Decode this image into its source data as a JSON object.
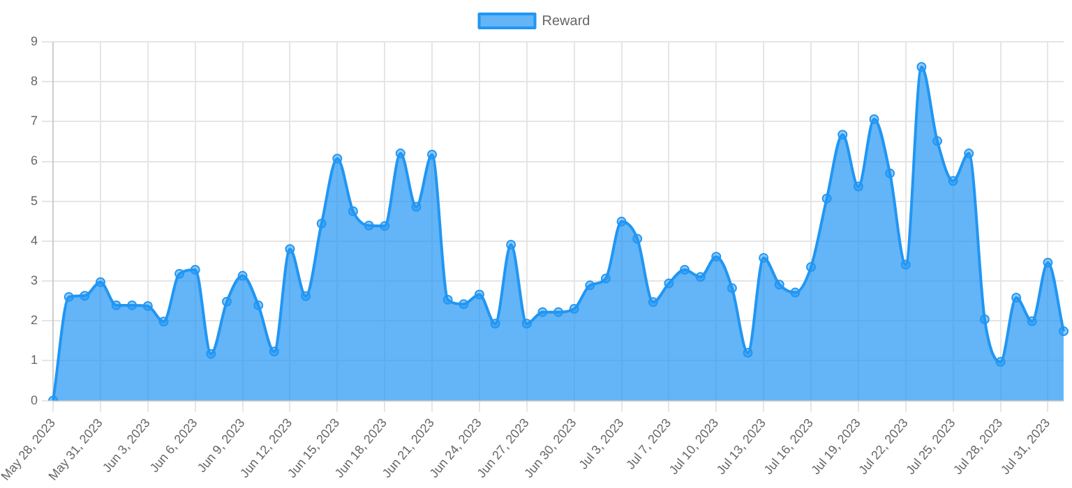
{
  "chart_data": {
    "type": "area",
    "categories": [
      "May 28, 2023",
      null,
      null,
      "May 31, 2023",
      null,
      null,
      "Jun 3, 2023",
      null,
      null,
      "Jun 6, 2023",
      null,
      null,
      "Jun 9, 2023",
      null,
      null,
      "Jun 12, 2023",
      null,
      null,
      "Jun 15, 2023",
      null,
      null,
      "Jun 18, 2023",
      null,
      null,
      "Jun 21, 2023",
      null,
      null,
      "Jun 24, 2023",
      null,
      null,
      "Jun 27, 2023",
      null,
      null,
      "Jun 30, 2023",
      null,
      null,
      "Jul 3, 2023",
      null,
      null,
      "Jul 7, 2023",
      null,
      null,
      "Jul 10, 2023",
      null,
      null,
      "Jul 13, 2023",
      null,
      null,
      "Jul 16, 2023",
      null,
      null,
      "Jul 19, 2023",
      null,
      null,
      "Jul 22, 2023",
      null,
      null,
      "Jul 25, 2023",
      null,
      null,
      "Jul 28, 2023",
      null,
      null,
      "Jul 31, 2023",
      null
    ],
    "series": [
      {
        "name": "Reward",
        "color": "#2196f3",
        "values": [
          0,
          2.6,
          2.63,
          2.97,
          2.39,
          2.39,
          2.37,
          1.98,
          3.18,
          3.28,
          1.17,
          2.48,
          3.13,
          2.39,
          1.23,
          3.8,
          2.62,
          4.44,
          6.07,
          4.75,
          4.39,
          4.38,
          6.2,
          4.86,
          6.17,
          2.53,
          2.42,
          2.66,
          1.93,
          3.91,
          1.93,
          2.22,
          2.22,
          2.3,
          2.89,
          3.06,
          4.49,
          4.06,
          2.47,
          2.94,
          3.28,
          3.1,
          3.61,
          2.82,
          1.2,
          3.58,
          2.91,
          2.71,
          3.35,
          5.07,
          6.67,
          5.37,
          7.06,
          5.7,
          3.41,
          8.37,
          6.51,
          5.51,
          6.2,
          2.04,
          0.97,
          2.58,
          1.99,
          3.46,
          1.74
        ]
      }
    ],
    "ylim": [
      0,
      9
    ],
    "yticks": [
      0,
      1,
      2,
      3,
      4,
      5,
      6,
      7,
      8,
      9
    ],
    "grid": true,
    "legend": "top",
    "marker": "circle"
  }
}
